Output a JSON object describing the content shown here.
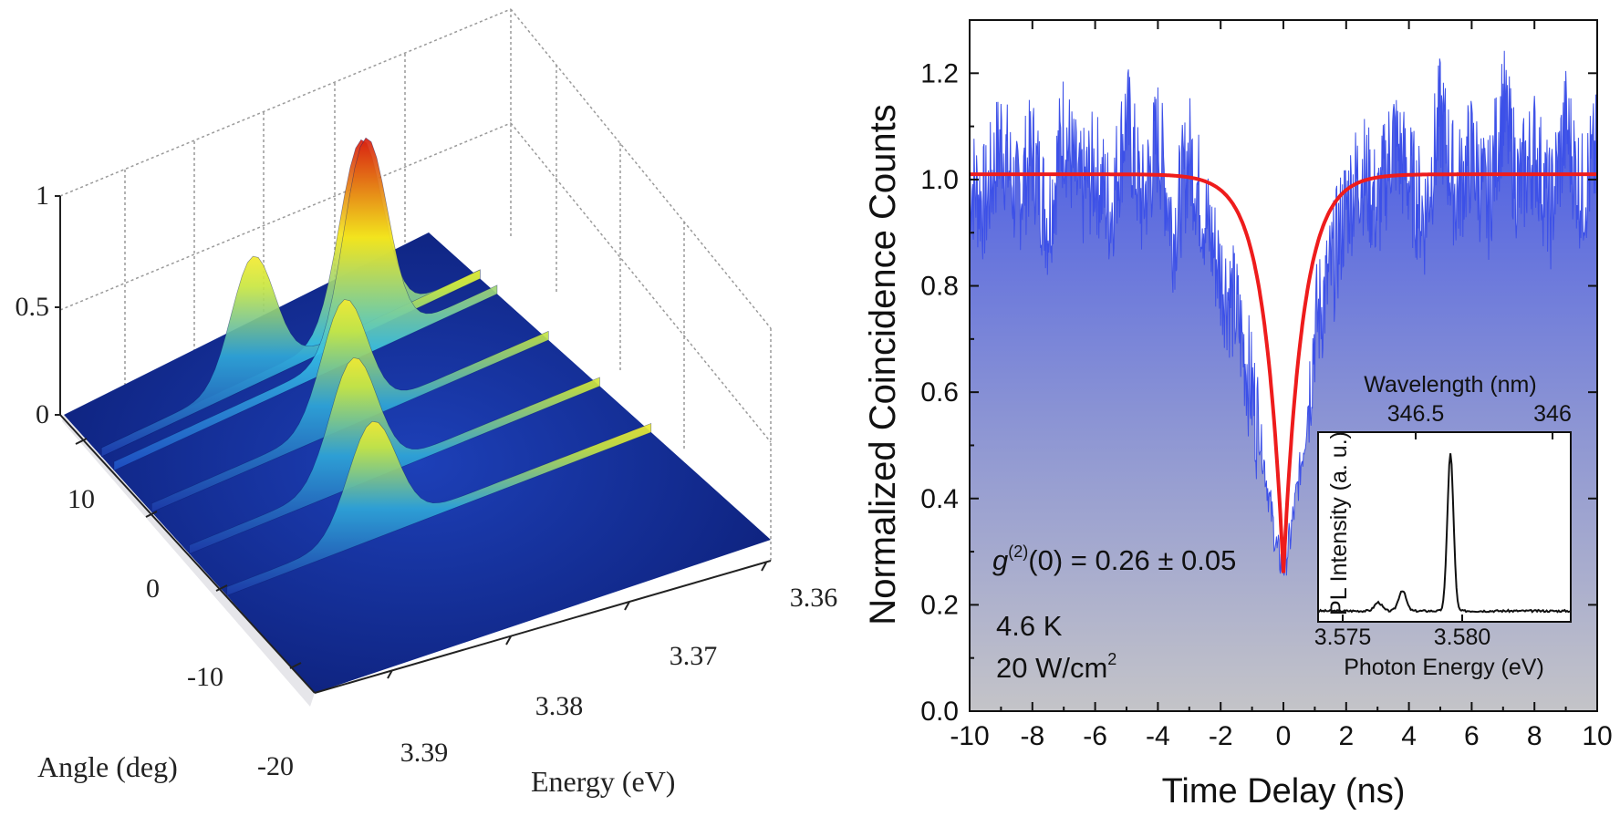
{
  "chart_data": [
    {
      "type": "surface3d",
      "title": "",
      "xlabel": "Energy (eV)",
      "ylabel": "Angle (deg)",
      "zlabel": "",
      "x_ticks": [
        "3.39",
        "3.38",
        "3.37",
        "3.36"
      ],
      "y_ticks": [
        "-20",
        "-10",
        "0",
        "10"
      ],
      "z_ticks": [
        "0",
        "0.5",
        "1"
      ],
      "xlim": [
        3.36,
        3.395
      ],
      "ylim": [
        -20,
        20
      ],
      "zlim": [
        0,
        1
      ],
      "grid": true,
      "colormap": [
        "#0a1a6e",
        "#1f4fc4",
        "#36c2e6",
        "#f2e41c",
        "#d81e10"
      ],
      "ridges": [
        {
          "angle": -6,
          "peak_energy": 3.383,
          "peak_value": 0.5
        },
        {
          "angle": 0,
          "peak_energy": 3.381,
          "peak_value": 0.55
        },
        {
          "angle": 6,
          "peak_energy": 3.378,
          "peak_value": 0.55
        },
        {
          "angle": 12,
          "peak_energy": 3.372,
          "peak_value": 0.95
        },
        {
          "angle": 14,
          "peak_energy": 3.371,
          "peak_value": 0.85
        },
        {
          "angle": 14,
          "peak_energy": 3.381,
          "peak_value": 0.55
        }
      ]
    },
    {
      "type": "area",
      "title": "",
      "xlabel": "Time Delay  (ns)",
      "ylabel": "Normalized Coincidence Counts",
      "xlim": [
        -10,
        10
      ],
      "ylim": [
        0,
        1.3
      ],
      "x_ticks": [
        -10,
        -8,
        -6,
        -4,
        -2,
        0,
        2,
        4,
        6,
        8,
        10
      ],
      "x_tick_labels": [
        "-10",
        "-8",
        "-6",
        "-4",
        "-2",
        "0",
        "2",
        "4",
        "6",
        "8",
        "10"
      ],
      "y_ticks": [
        0,
        0.2,
        0.4,
        0.6,
        0.8,
        1.0,
        1.2
      ],
      "y_tick_labels": [
        "0.0",
        "0.2",
        "0.4",
        "0.6",
        "0.8",
        "1.0",
        "1.2"
      ],
      "series": [
        {
          "kind": "measured",
          "color": "#3c50e8",
          "x": [
            -10,
            -9.5,
            -9,
            -8.5,
            -8,
            -7.5,
            -7,
            -6.5,
            -6,
            -5.5,
            -5,
            -4.5,
            -4,
            -3.5,
            -3,
            -2.5,
            -2,
            -1.5,
            -1,
            -0.7,
            -0.4,
            -0.2,
            0,
            0.2,
            0.4,
            0.7,
            1,
            1.5,
            2,
            2.5,
            3,
            3.5,
            4,
            4.5,
            5,
            5.5,
            6,
            6.5,
            7,
            7.5,
            8,
            8.5,
            9,
            9.5,
            10
          ],
          "y": [
            1.0,
            0.95,
            1.08,
            0.96,
            1.05,
            0.92,
            1.1,
            0.97,
            1.02,
            0.94,
            1.12,
            0.95,
            1.08,
            0.9,
            1.05,
            0.93,
            0.82,
            0.75,
            0.6,
            0.5,
            0.38,
            0.3,
            0.27,
            0.32,
            0.4,
            0.52,
            0.72,
            0.82,
            0.95,
            1.02,
            0.94,
            1.08,
            1.0,
            0.93,
            1.12,
            0.97,
            1.05,
            0.95,
            1.14,
            0.98,
            1.06,
            0.94,
            1.1,
            0.97,
            1.05
          ]
        },
        {
          "kind": "fit",
          "color": "#ee1c1c",
          "model": "1 - 0.75*exp(-|t|/0.6)",
          "baseline": 1.01,
          "g2_zero": 0.26
        }
      ],
      "annotations": {
        "g2_prefix": "g",
        "g2_super": "(2)",
        "g2_rest": "(0) = 0.26 ± 0.05",
        "temperature": "4.6 K",
        "power_prefix": "20 W/cm",
        "power_super": "2"
      },
      "inset": {
        "type": "line",
        "xlabel": "Photon Energy  (eV)",
        "ylabel": "PL Intensity  (a. u.)",
        "top_axis_label": "Wavelength  (nm)",
        "top_ticks": [
          "346.5",
          "346"
        ],
        "x_tick_labels": [
          "3.575",
          "3.580"
        ],
        "xlim": [
          3.574,
          3.5845
        ],
        "ylim": [
          0,
          1
        ],
        "peaks": [
          {
            "energy": 3.5765,
            "height": 0.05
          },
          {
            "energy": 3.5775,
            "height": 0.12
          },
          {
            "energy": 3.5795,
            "height": 0.92
          }
        ]
      }
    }
  ]
}
